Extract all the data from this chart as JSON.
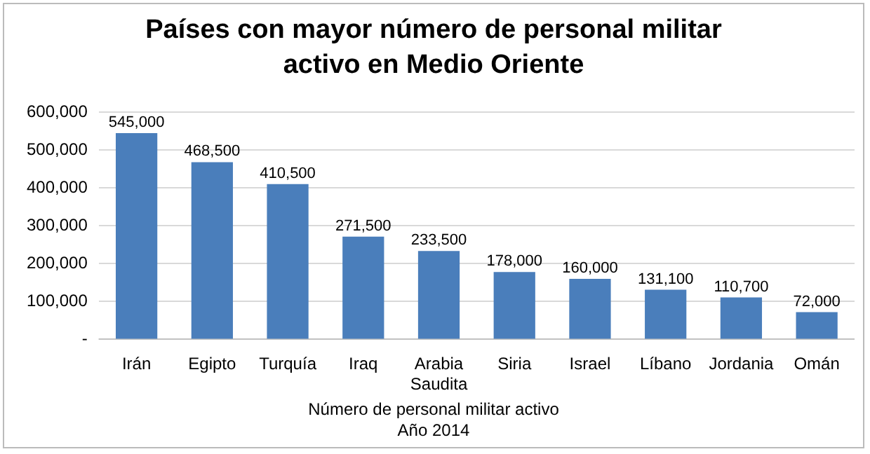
{
  "chart_data": {
    "type": "bar",
    "title": "Países con mayor número de personal militar activo en Medio Oriente",
    "xlabel": "Número de personal militar activo\nAño 2014",
    "categories": [
      "Irán",
      "Egipto",
      "Turquía",
      "Iraq",
      "Arabia\nSaudita",
      "Siria",
      "Israel",
      "Líbano",
      "Jordania",
      "Omán"
    ],
    "values": [
      545000,
      468500,
      410500,
      271500,
      233500,
      178000,
      160000,
      131100,
      110700,
      72000
    ],
    "value_labels": [
      "545,000",
      "468,500",
      "410,500",
      "271,500",
      "233,500",
      "178,000",
      "160,000",
      "131,100",
      "110,700",
      "72,000"
    ],
    "color": "#4a7ebb",
    "ylim": [
      0,
      600000
    ],
    "yticks": [
      {
        "value": 0,
        "label": "-"
      },
      {
        "value": 100000,
        "label": "100,000"
      },
      {
        "value": 200000,
        "label": "200,000"
      },
      {
        "value": 300000,
        "label": "300,000"
      },
      {
        "value": 400000,
        "label": "400,000"
      },
      {
        "value": 500000,
        "label": "500,000"
      },
      {
        "value": 600000,
        "label": "600,000"
      }
    ],
    "grid": "y"
  }
}
